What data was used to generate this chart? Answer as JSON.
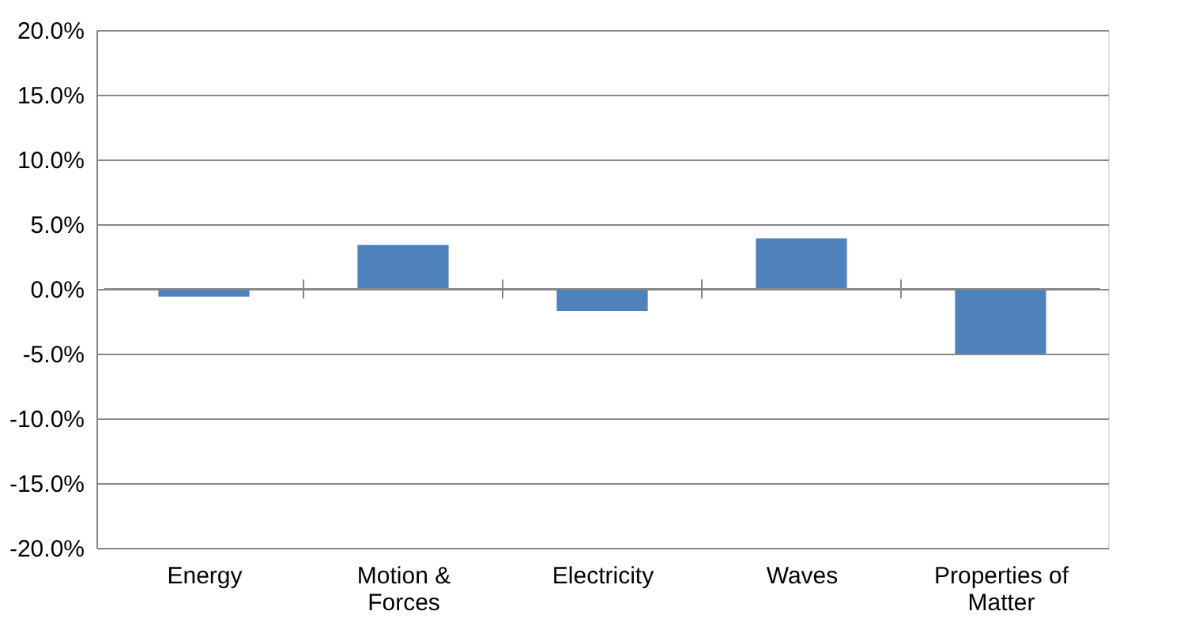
{
  "chart_data": {
    "type": "bar",
    "categories": [
      "Energy",
      "Motion & Forces",
      "Electricity",
      "Waves",
      "Properties of Matter"
    ],
    "values": [
      -0.6,
      3.4,
      -1.7,
      3.9,
      -5.0
    ],
    "color": "#4f81bd",
    "ylim": [
      -20,
      20
    ],
    "yticks": [
      {
        "value": -20,
        "label": "-20.0%"
      },
      {
        "value": -15,
        "label": "-15.0%"
      },
      {
        "value": -10,
        "label": "-10.0%"
      },
      {
        "value": -5,
        "label": "-5.0%"
      },
      {
        "value": 0,
        "label": "0.0%"
      },
      {
        "value": 5,
        "label": "5.0%"
      },
      {
        "value": 10,
        "label": "10.0%"
      },
      {
        "value": 15,
        "label": "15.0%"
      },
      {
        "value": 20,
        "label": "20.0%"
      }
    ],
    "grid": "y"
  }
}
